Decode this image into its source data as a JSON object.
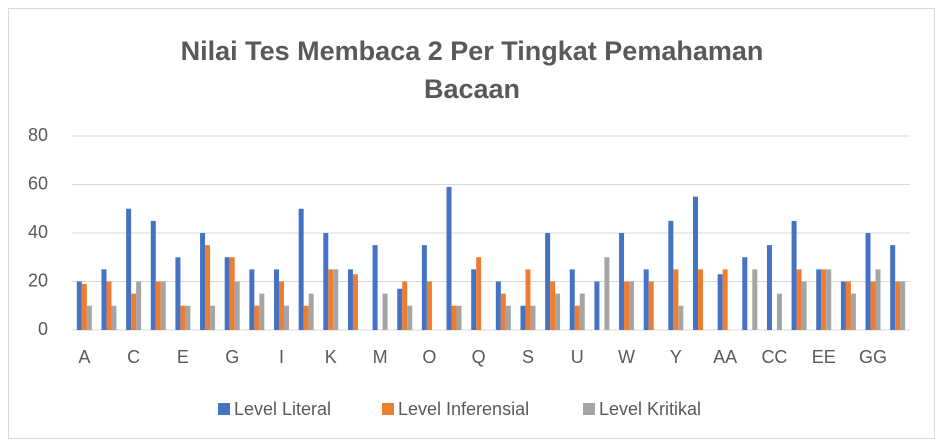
{
  "chart_data": {
    "type": "bar",
    "title": "Nilai Tes Membaca 2 Per Tingkat Pemahaman Bacaan",
    "categories": [
      "A",
      null,
      "C",
      null,
      "E",
      null,
      "G",
      null,
      "I",
      null,
      "K",
      null,
      "M",
      null,
      "O",
      null,
      "Q",
      null,
      "S",
      null,
      "U",
      null,
      "W",
      null,
      "Y",
      null,
      "AA",
      null,
      "CC",
      null,
      "EE",
      null,
      "GG",
      null
    ],
    "series": [
      {
        "name": "Level Literal",
        "color": "#4472c4",
        "values": [
          20,
          25,
          50,
          45,
          30,
          40,
          30,
          25,
          25,
          50,
          40,
          25,
          35,
          17,
          35,
          59,
          25,
          20,
          10,
          40,
          25,
          20,
          40,
          25,
          45,
          55,
          23,
          30,
          35,
          45,
          25,
          20,
          40,
          35
        ]
      },
      {
        "name": "Level Inferensial",
        "color": "#ed7d31",
        "values": [
          19,
          20,
          15,
          20,
          10,
          35,
          30,
          10,
          20,
          10,
          25,
          23,
          0,
          20,
          20,
          10,
          30,
          15,
          25,
          20,
          10,
          0,
          20,
          20,
          25,
          25,
          25,
          0,
          0,
          25,
          25,
          20,
          20,
          20
        ]
      },
      {
        "name": "Level Kritikal",
        "color": "#a5a5a5",
        "values": [
          10,
          10,
          20,
          20,
          10,
          10,
          20,
          15,
          10,
          15,
          25,
          0,
          15,
          10,
          0,
          10,
          0,
          10,
          10,
          15,
          15,
          30,
          20,
          0,
          10,
          0,
          0,
          25,
          15,
          20,
          25,
          15,
          25,
          20
        ]
      }
    ],
    "ylim": [
      0,
      80
    ],
    "yticks": [
      0,
      20,
      40,
      60,
      80
    ],
    "grid": true,
    "legend": "bottom"
  }
}
